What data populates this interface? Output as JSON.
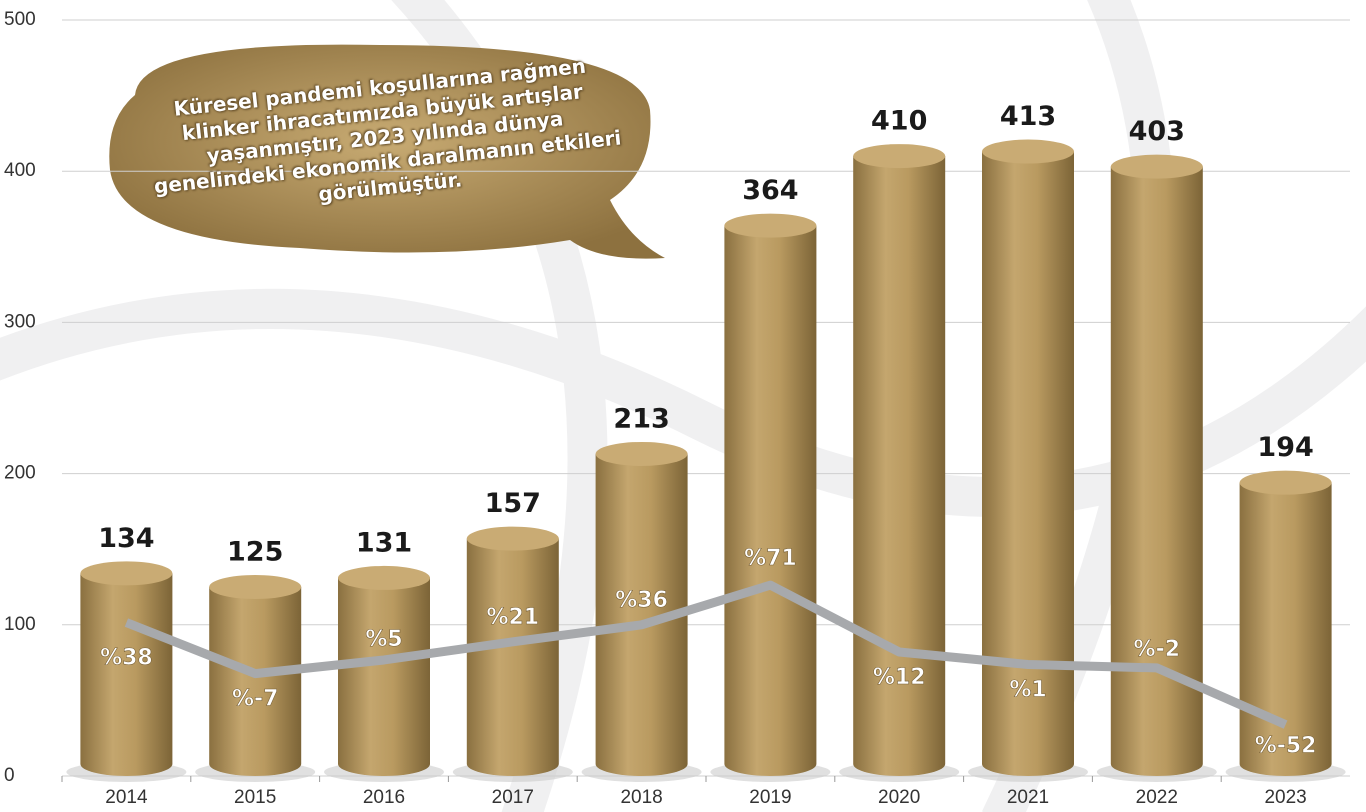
{
  "chart_data": {
    "type": "bar",
    "annotation": "Küresel pandemi koşullarına rağmen klinker ihracatımızda büyük artışlar yaşanmıştır, 2023 yılında dünya genelindeki ekonomik daralmanın etkileri görülmüştür.",
    "categories": [
      "2014",
      "2015",
      "2016",
      "2017",
      "2018",
      "2019",
      "2020",
      "2021",
      "2022",
      "2023"
    ],
    "series": [
      {
        "type": "bar",
        "color": "#b89a62",
        "values": [
          134,
          125,
          131,
          157,
          213,
          364,
          410,
          413,
          403,
          194
        ]
      },
      {
        "type": "line",
        "axis": "y2",
        "color": "#a7a9ac",
        "values": [
          38,
          -7,
          5,
          21,
          36,
          71,
          12,
          1,
          -2,
          -52
        ],
        "value_labels": [
          "%38",
          "%-7",
          "%5",
          "%21",
          "%36",
          "%71",
          "%12",
          "%1",
          "%-2",
          "%-52"
        ]
      }
    ],
    "ylim": [
      0,
      500
    ],
    "yticks": [
      0,
      100,
      200,
      300,
      400,
      500
    ],
    "y2lim": [
      -97.3,
      569.3
    ],
    "grid": true
  }
}
